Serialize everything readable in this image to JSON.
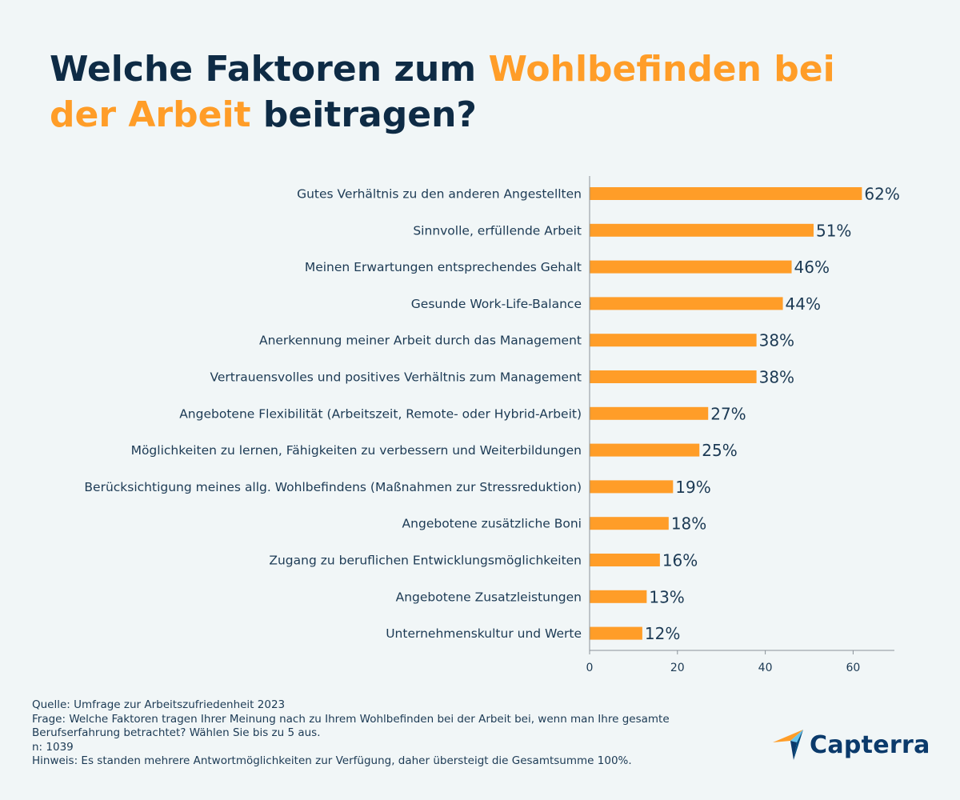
{
  "header": {
    "title_part1": "Welche Faktoren zum ",
    "title_accent": "Wohlbefinden bei der Arbeit",
    "title_part2": " beitragen?",
    "accent_color": "#ff9d28",
    "title_color": "#0e2b45"
  },
  "chart_data": {
    "type": "bar",
    "orientation": "horizontal",
    "categories": [
      "Gutes Verhältnis zu den anderen Angestellten",
      "Sinnvolle, erfüllende Arbeit",
      "Meinen Erwartungen entsprechendes Gehalt",
      "Gesunde Work-Life-Balance",
      "Anerkennung meiner Arbeit durch das Management",
      "Vertrauensvolles und positives Verhältnis zum Management",
      "Angebotene Flexibilität (Arbeitszeit, Remote- oder Hybrid-Arbeit)",
      "Möglichkeiten zu lernen, Fähigkeiten zu verbessern und Weiterbildungen",
      "Berücksichtigung meines allg. Wohlbefindens (Maßnahmen zur Stressreduktion)",
      "Angebotene zusätzliche Boni",
      "Zugang zu beruflichen Entwicklungsmöglichkeiten",
      "Angebotene Zusatzleistungen",
      "Unternehmenskultur und Werte"
    ],
    "values": [
      62,
      51,
      46,
      44,
      38,
      38,
      27,
      25,
      19,
      18,
      16,
      13,
      12
    ],
    "value_labels": [
      "62%",
      "51%",
      "46%",
      "44%",
      "38%",
      "38%",
      "27%",
      "25%",
      "19%",
      "18%",
      "16%",
      "13%",
      "12%"
    ],
    "xlim": [
      0,
      70
    ],
    "xticks": [
      0,
      20,
      40,
      60
    ],
    "bar_color": "#ff9d28",
    "grid": false,
    "title": "",
    "xlabel": "",
    "ylabel": ""
  },
  "footer": {
    "source": "Quelle: Umfrage zur Arbeitszufriedenheit 2023",
    "question_line1": "Frage: Welche Faktoren tragen Ihrer Meinung nach zu Ihrem Wohlbefinden bei der Arbeit bei, wenn man Ihre gesamte",
    "question_line2": "Berufserfahrung betrachtet? Wählen Sie bis zu 5 aus.",
    "n": "n: 1039",
    "note": "Hinweis: Es standen mehrere Antwortmöglichkeiten zur Verfügung, daher übersteigt die Gesamtsumme 100%."
  },
  "logo": {
    "text": "Capterra",
    "icon": "capterra-arrow-icon",
    "colors": [
      "#ff9d28",
      "#68c5ed",
      "#0b3a6b",
      "#044d80"
    ]
  }
}
